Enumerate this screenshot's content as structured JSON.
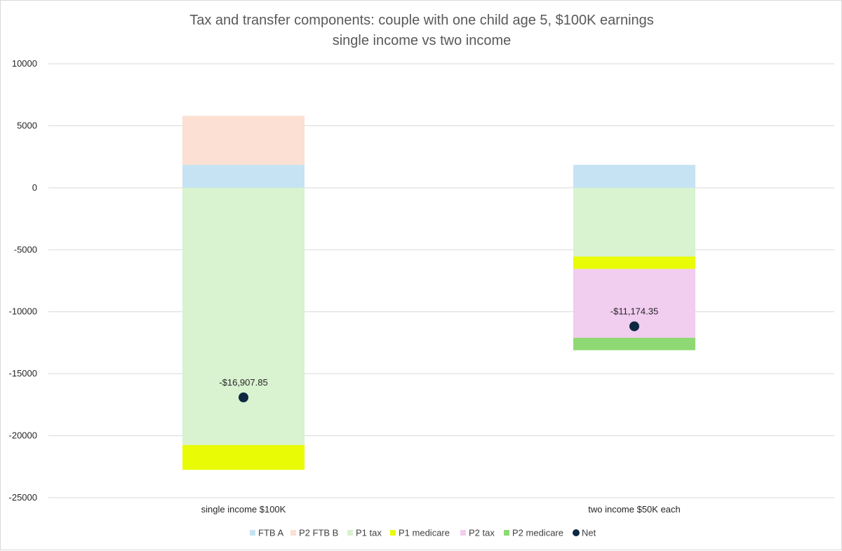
{
  "chart_data": {
    "type": "bar",
    "stacked": true,
    "title": "Tax and transfer components: couple with one child age 5, $100K earnings",
    "subtitle": "single income vs two income",
    "categories": [
      "single income $100K",
      "two income $50K each"
    ],
    "ylim": [
      -25000,
      10000
    ],
    "yticks": [
      10000,
      5000,
      0,
      -5000,
      -10000,
      -15000,
      -20000,
      -25000
    ],
    "grid": true,
    "legend_position": "bottom",
    "series": [
      {
        "name": "FTB A",
        "color": "#c5e3f3",
        "values": [
          1850,
          1850
        ]
      },
      {
        "name": "P2 FTB B",
        "color": "#fbe0d3",
        "values": [
          3950,
          0
        ]
      },
      {
        "name": "P1 tax",
        "color": "#d9f2d0",
        "values": [
          -20750,
          -5550
        ]
      },
      {
        "name": "P1 medicare",
        "color": "#e9fb05",
        "values": [
          -2000,
          -1000
        ]
      },
      {
        "name": "P2 tax",
        "color": "#f1cdef",
        "values": [
          0,
          -5550
        ]
      },
      {
        "name": "P2 medicare",
        "color": "#8ed973",
        "values": [
          0,
          -1000
        ]
      }
    ],
    "net": {
      "name": "Net",
      "color": "#0e2841",
      "values": [
        -16907.85,
        -11174.35
      ],
      "labels": [
        "-$16,907.85",
        "-$11,174.35"
      ]
    }
  }
}
